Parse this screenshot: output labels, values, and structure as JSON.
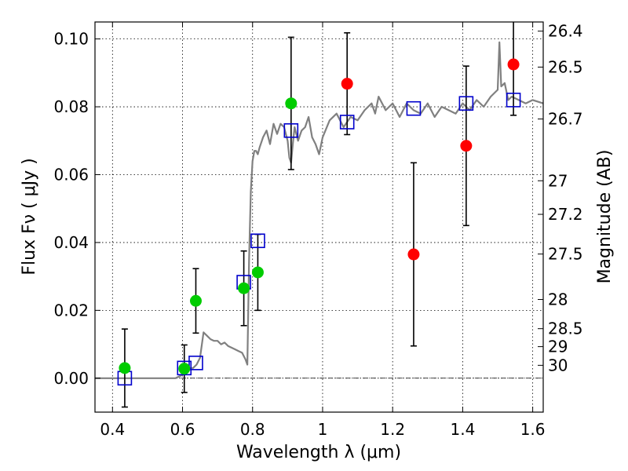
{
  "chart_data": {
    "type": "scatter",
    "xlabel": "Wavelength  λ (μm)",
    "ylabel": "Flux  Fν  ( μJy )",
    "y2label": "Magnitude (AB)",
    "xlim": [
      0.35,
      1.63
    ],
    "ylim": [
      -0.01,
      0.105
    ],
    "grid": true,
    "x_ticks": [
      0.4,
      0.6,
      0.8,
      1.0,
      1.2,
      1.4,
      1.6
    ],
    "x_tick_labels": [
      "0.4",
      "0.6",
      "0.8",
      "1",
      "1.2",
      "1.4",
      "1.6"
    ],
    "y_ticks": [
      0.0,
      0.02,
      0.04,
      0.06,
      0.08,
      0.1
    ],
    "y_tick_labels": [
      "0.00",
      "0.02",
      "0.04",
      "0.06",
      "0.08",
      "0.10"
    ],
    "mag_ticks": [
      {
        "label": "26.4",
        "flux": 0.1023
      },
      {
        "label": "26.5",
        "flux": 0.0917
      },
      {
        "label": "26.7",
        "flux": 0.0764
      },
      {
        "label": "27",
        "flux": 0.0582
      },
      {
        "label": "27.2",
        "flux": 0.0483
      },
      {
        "label": "27.5",
        "flux": 0.0366
      },
      {
        "label": "28",
        "flux": 0.0232
      },
      {
        "label": "28.5",
        "flux": 0.0146
      },
      {
        "label": "29",
        "flux": 0.0093
      },
      {
        "label": "30",
        "flux": 0.0038
      }
    ],
    "zero_line": 0.0,
    "model_spectrum": {
      "color": "#808080",
      "x": [
        0.35,
        0.58,
        0.59,
        0.6,
        0.61,
        0.62,
        0.63,
        0.64,
        0.65,
        0.66,
        0.67,
        0.68,
        0.69,
        0.7,
        0.71,
        0.72,
        0.73,
        0.74,
        0.75,
        0.76,
        0.77,
        0.78,
        0.785,
        0.79,
        0.795,
        0.8,
        0.805,
        0.81,
        0.815,
        0.82,
        0.83,
        0.84,
        0.85,
        0.86,
        0.87,
        0.88,
        0.89,
        0.9,
        0.905,
        0.91,
        0.915,
        0.92,
        0.93,
        0.94,
        0.95,
        0.96,
        0.97,
        0.98,
        0.99,
        1.0,
        1.02,
        1.04,
        1.06,
        1.08,
        1.1,
        1.12,
        1.14,
        1.15,
        1.16,
        1.18,
        1.2,
        1.22,
        1.24,
        1.26,
        1.28,
        1.3,
        1.32,
        1.34,
        1.36,
        1.38,
        1.4,
        1.42,
        1.44,
        1.46,
        1.48,
        1.5,
        1.505,
        1.51,
        1.52,
        1.53,
        1.54,
        1.56,
        1.58,
        1.6,
        1.63
      ],
      "y": [
        0.0,
        0.0,
        0.0005,
        0.001,
        0.002,
        0.003,
        0.003,
        0.004,
        0.006,
        0.0135,
        0.0125,
        0.0115,
        0.011,
        0.011,
        0.01,
        0.0105,
        0.0095,
        0.009,
        0.0085,
        0.008,
        0.0075,
        0.0055,
        0.004,
        0.035,
        0.055,
        0.064,
        0.067,
        0.067,
        0.066,
        0.068,
        0.071,
        0.073,
        0.069,
        0.075,
        0.072,
        0.075,
        0.074,
        0.07,
        0.065,
        0.0635,
        0.069,
        0.074,
        0.07,
        0.073,
        0.074,
        0.077,
        0.071,
        0.069,
        0.066,
        0.071,
        0.076,
        0.078,
        0.074,
        0.077,
        0.076,
        0.079,
        0.081,
        0.078,
        0.083,
        0.079,
        0.081,
        0.077,
        0.081,
        0.079,
        0.078,
        0.081,
        0.077,
        0.08,
        0.079,
        0.078,
        0.081,
        0.079,
        0.082,
        0.08,
        0.083,
        0.085,
        0.099,
        0.086,
        0.087,
        0.082,
        0.083,
        0.082,
        0.081,
        0.082,
        0.081
      ]
    },
    "series": [
      {
        "marker": "square-open",
        "color": "#0000cc",
        "x": [
          0.435,
          0.605,
          0.638,
          0.775,
          0.815,
          0.91,
          1.07,
          1.26,
          1.41,
          1.545
        ],
        "y": [
          0.0,
          0.003,
          0.0045,
          0.0283,
          0.0405,
          0.073,
          0.0755,
          0.0795,
          0.081,
          0.082
        ]
      },
      {
        "marker": "circle",
        "color": "#00cc00",
        "x": [
          0.435,
          0.605,
          0.638,
          0.775,
          0.815,
          0.91
        ],
        "y": [
          0.003,
          0.0028,
          0.0228,
          0.0265,
          0.0312,
          0.081
        ],
        "yerr": [
          0.0115,
          0.007,
          0.0095,
          0.011,
          0.0112,
          0.0195
        ]
      },
      {
        "marker": "circle",
        "color": "#ff0000",
        "x": [
          1.07,
          1.26,
          1.41,
          1.545
        ],
        "y": [
          0.0868,
          0.0365,
          0.0685,
          0.0925
        ],
        "yerr": [
          0.015,
          0.027,
          0.0235,
          0.015
        ]
      }
    ]
  }
}
